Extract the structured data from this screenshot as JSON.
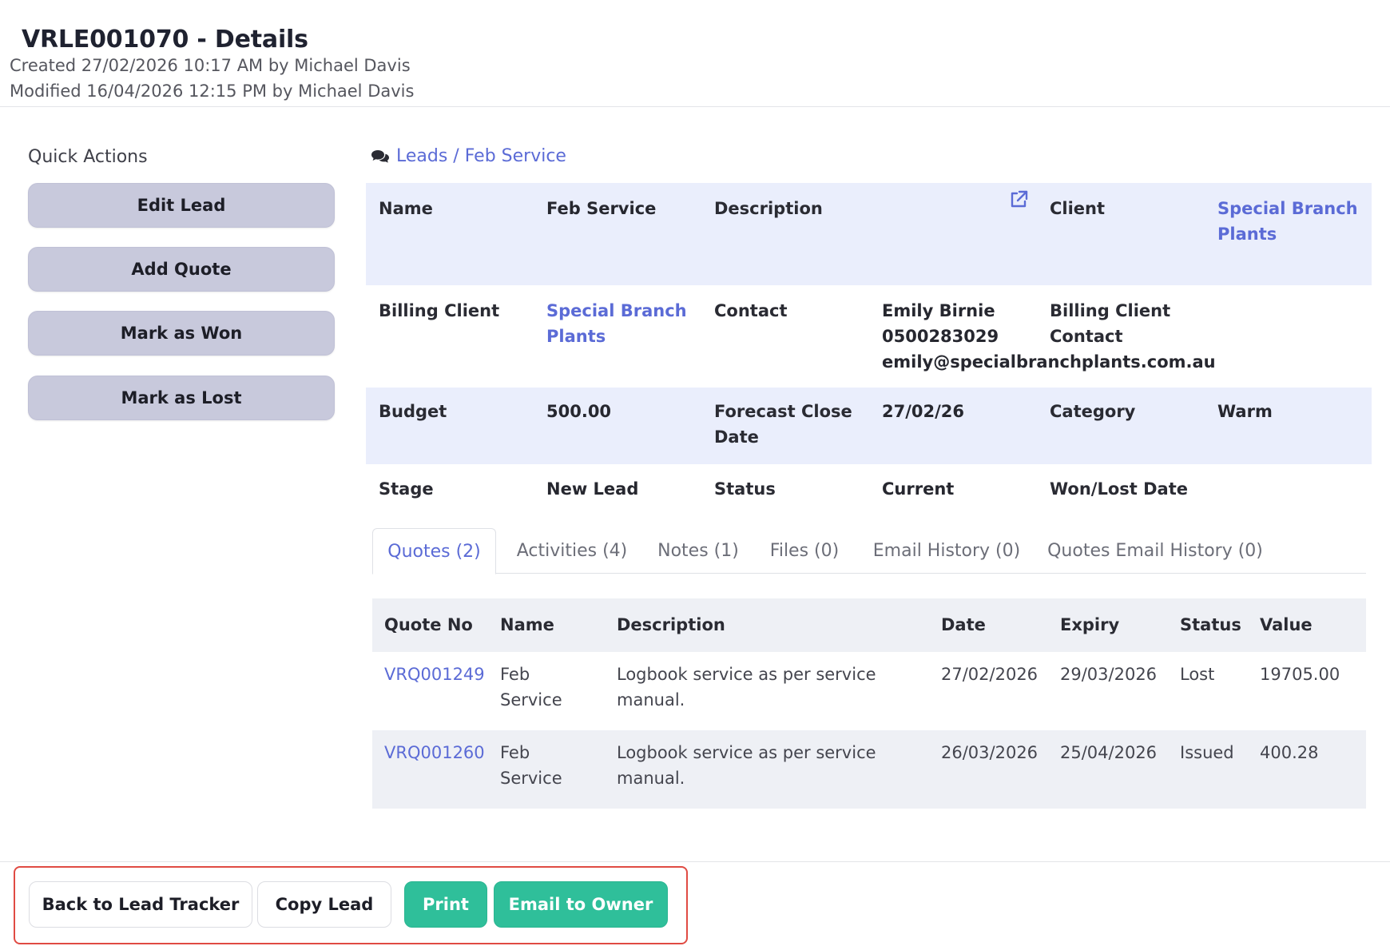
{
  "header": {
    "title": "VRLE001070 - Details",
    "created": "Created 27/02/2026 10:17 AM by Michael Davis",
    "modified": "Modified 16/04/2026 12:15 PM by Michael Davis"
  },
  "quick_actions": {
    "title": "Quick Actions",
    "buttons": [
      "Edit Lead",
      "Add Quote",
      "Mark as Won",
      "Mark as Lost"
    ]
  },
  "breadcrumb": {
    "icon": "comments-icon",
    "text": "Leads / Feb Service"
  },
  "details": {
    "name_label": "Name",
    "name_value": "Feb Service",
    "description_label": "Description",
    "external_link_icon": "external-link-icon",
    "client_label": "Client",
    "client_value_line1": "Special Branch",
    "client_value_line2": "Plants",
    "billing_client_label": "Billing Client",
    "billing_client_value_line1": "Special Branch",
    "billing_client_value_line2": "Plants",
    "contact_label": "Contact",
    "contact_name": "Emily Birnie",
    "contact_phone": "0500283029",
    "contact_email": "emily@specialbranchplants.com.au",
    "billing_contact_label_line1": "Billing Client",
    "billing_contact_label_line2": "Contact",
    "budget_label": "Budget",
    "budget_value": "500.00",
    "forecast_label_line1": "Forecast Close",
    "forecast_label_line2": "Date",
    "forecast_value": "27/02/26",
    "category_label": "Category",
    "category_value": "Warm",
    "stage_label": "Stage",
    "stage_value": "New Lead",
    "status_label": "Status",
    "status_value": "Current",
    "wonlost_label": "Won/Lost Date"
  },
  "tabs": [
    "Quotes (2)",
    "Activities (4)",
    "Notes (1)",
    "Files (0)",
    "Email History (0)",
    "Quotes Email History (0)"
  ],
  "active_tab": "Quotes (2)",
  "quotes_table": {
    "columns": [
      "Quote No",
      "Name",
      "Description",
      "Date",
      "Expiry",
      "Status",
      "Value"
    ],
    "rows": [
      {
        "quote_no": "VRQ001249",
        "name_line1": "Feb",
        "name_line2": "Service",
        "desc_line1": "Logbook service as per service",
        "desc_line2": "manual.",
        "date": "27/02/2026",
        "expiry": "29/03/2026",
        "status": "Lost",
        "value": "19705.00"
      },
      {
        "quote_no": "VRQ001260",
        "name_line1": "Feb",
        "name_line2": "Service",
        "desc_line1": "Logbook service as per service",
        "desc_line2": "manual.",
        "date": "26/03/2026",
        "expiry": "25/04/2026",
        "status": "Issued",
        "value": "400.28"
      }
    ]
  },
  "footer": {
    "back_label": "Back to Lead Tracker",
    "copy_label": "Copy Lead",
    "print_label": "Print",
    "email_label": "Email to Owner"
  },
  "colors": {
    "accent_link": "#5b6bd6",
    "action_green": "#2fbf9a",
    "quick_action_bg": "#c8c9dc",
    "row_shade": "#eaeefc",
    "highlight_border": "#e04b43"
  }
}
